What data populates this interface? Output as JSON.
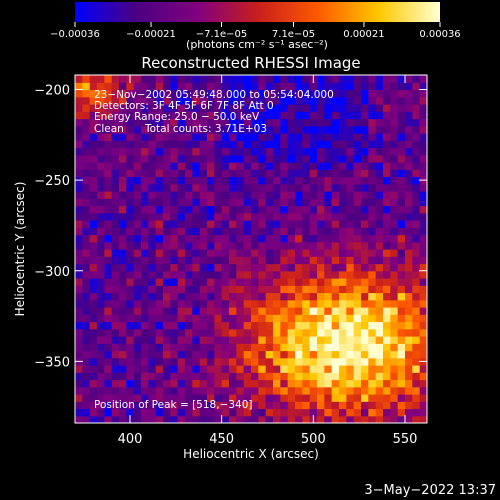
{
  "chart_data": {
    "type": "heatmap",
    "title": "Reconstructed RHESSI Image",
    "xlabel": "Heliocentric X (arcsec)",
    "ylabel": "Heliocentric Y (arcsec)",
    "xlim": [
      370,
      562
    ],
    "ylim": [
      -384,
      -192
    ],
    "x_ticks": [
      {
        "value": 400,
        "label": "400"
      },
      {
        "value": 450,
        "label": "450"
      },
      {
        "value": 500,
        "label": "500"
      },
      {
        "value": 550,
        "label": "550"
      }
    ],
    "y_ticks": [
      {
        "value": -200,
        "label": "−200"
      },
      {
        "value": -250,
        "label": "−250"
      },
      {
        "value": -300,
        "label": "−300"
      },
      {
        "value": -350,
        "label": "−350"
      }
    ],
    "colorbar": {
      "range": [
        -0.00036,
        0.00036
      ],
      "ticks": [
        {
          "value": -0.00036,
          "label": "−0.00036"
        },
        {
          "value": -0.00021,
          "label": "−0.00021"
        },
        {
          "value": -7.1e-05,
          "label": "−7.1e−05"
        },
        {
          "value": 7.1e-05,
          "label": "7.1e−05"
        },
        {
          "value": 0.00021,
          "label": "0.00021"
        },
        {
          "value": 0.00036,
          "label": "0.00036"
        }
      ],
      "units_label": "(photons cm⁻² s⁻¹ asec⁻²)",
      "colors": [
        "#0000ff",
        "#4b0082",
        "#800080",
        "#c81e1e",
        "#ff5a00",
        "#ffc800",
        "#ffffd2"
      ]
    },
    "annotations": {
      "time_range": "23−Nov−2002 05:49:48.000 to 05:54:04.000",
      "detectors": "Detectors: 3F 4F 5F 6F 7F 8F Att 0",
      "energy_range": "Energy Range: 25.0 − 50.0 keV",
      "algorithm": "Clean",
      "total_counts": "Total counts: 3.71E+03",
      "peak_position": "Position of Peak = [518,−340]"
    },
    "peak": {
      "x": 518,
      "y": -340
    }
  },
  "timestamp": "3−May−2022 13:37"
}
